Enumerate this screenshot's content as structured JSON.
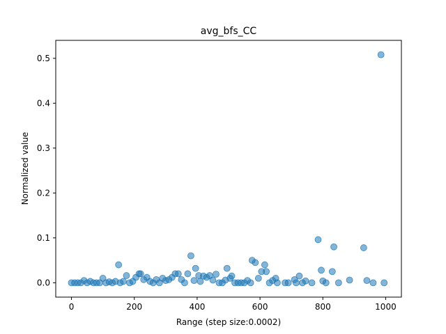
{
  "chart_data": {
    "type": "scatter",
    "title": "avg_bfs_CC",
    "xlabel": "Range (step size:0.0002)",
    "ylabel": "Normalized value",
    "xlim": [
      -50,
      1050
    ],
    "ylim": [
      -0.032,
      0.54
    ],
    "xticks": [
      0,
      200,
      400,
      600,
      800,
      1000
    ],
    "yticks": [
      0.0,
      0.1,
      0.2,
      0.3,
      0.4,
      0.5
    ],
    "xtick_labels": [
      "0",
      "200",
      "400",
      "600",
      "800",
      "1000"
    ],
    "ytick_labels": [
      "0.0",
      "0.1",
      "0.2",
      "0.3",
      "0.4",
      "0.5"
    ],
    "grid": false,
    "marker_color": "#1f77b4",
    "marker_alpha": 0.55,
    "series": [
      {
        "x": [
          0,
          10,
          20,
          30,
          40,
          50,
          60,
          70,
          80,
          90,
          100,
          110,
          120,
          130,
          140,
          150,
          155,
          165,
          175,
          185,
          195,
          205,
          215,
          220,
          230,
          240,
          250,
          260,
          270,
          280,
          290,
          300,
          310,
          320,
          330,
          340,
          350,
          360,
          370,
          380,
          390,
          395,
          405,
          410,
          420,
          430,
          440,
          450,
          460,
          470,
          480,
          490,
          495,
          505,
          510,
          520,
          530,
          540,
          550,
          560,
          570,
          575,
          585,
          595,
          605,
          615,
          620,
          630,
          640,
          650,
          655,
          680,
          690,
          710,
          715,
          725,
          735,
          745,
          765,
          785,
          795,
          800,
          810,
          830,
          835,
          850,
          885,
          930,
          940,
          960,
          985,
          995
        ],
        "y": [
          0.0,
          0.0,
          0.0,
          0.0,
          0.005,
          0.0,
          0.003,
          0.0,
          0.0,
          0.0,
          0.01,
          0.0,
          0.002,
          0.0,
          0.003,
          0.04,
          0.0,
          0.003,
          0.016,
          0.0,
          0.003,
          0.012,
          0.02,
          0.02,
          0.007,
          0.012,
          0.003,
          0.0,
          0.007,
          0.0,
          0.01,
          0.005,
          0.007,
          0.012,
          0.02,
          0.02,
          0.007,
          0.0,
          0.02,
          0.06,
          0.005,
          0.032,
          0.016,
          0.003,
          0.015,
          0.012,
          0.016,
          0.006,
          0.019,
          0.0,
          0.0,
          0.006,
          0.032,
          0.01,
          0.015,
          0.0,
          0.0,
          0.0,
          0.0,
          0.005,
          0.0,
          0.05,
          0.045,
          0.01,
          0.025,
          0.04,
          0.025,
          0.0,
          0.005,
          0.01,
          0.0,
          0.0,
          0.0,
          0.007,
          0.0,
          0.015,
          0.0,
          0.004,
          0.0,
          0.096,
          0.028,
          0.004,
          0.0,
          0.025,
          0.08,
          0.0,
          0.006,
          0.078,
          0.005,
          0.0,
          0.508,
          0.0
        ]
      }
    ]
  }
}
